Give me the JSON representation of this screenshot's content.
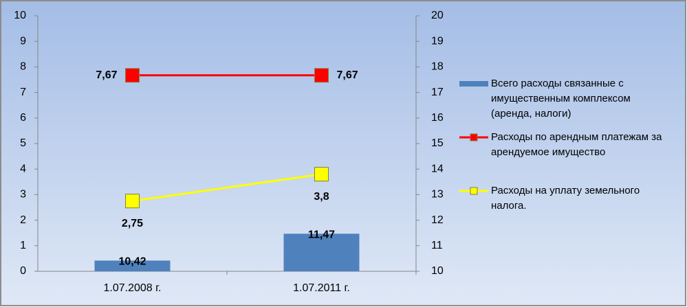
{
  "chart_data": {
    "type": "combo",
    "categories": [
      "1.07.2008 г.",
      "1.07.2011 г."
    ],
    "ylim": [
      0,
      10
    ],
    "yticks": [
      0,
      1,
      2,
      3,
      4,
      5,
      6,
      7,
      8,
      9,
      10
    ],
    "y2lim": [
      10,
      20
    ],
    "y2ticks": [
      10,
      11,
      12,
      13,
      14,
      15,
      16,
      17,
      18,
      19,
      20
    ],
    "legend": "right",
    "series": [
      {
        "name": "Всего расходы связанные с имущественным комплексом (аренда, налоги)",
        "type": "bar",
        "axis": "y2",
        "color": "#4f81bd",
        "values": [
          10.42,
          11.47
        ],
        "value_labels": [
          "10,42",
          "11,47"
        ]
      },
      {
        "name": "Расходы по арендным платежам за арендуемое имущество",
        "type": "line",
        "color": "#ff0000",
        "values": [
          7.67,
          7.67
        ],
        "value_labels": [
          "7,67",
          "7,67"
        ]
      },
      {
        "name": "Расходы на уплату земельного налога.",
        "type": "line",
        "color": "#ffff00",
        "values": [
          2.75,
          3.8
        ],
        "value_labels": [
          "2,75",
          "3,8"
        ]
      }
    ]
  }
}
